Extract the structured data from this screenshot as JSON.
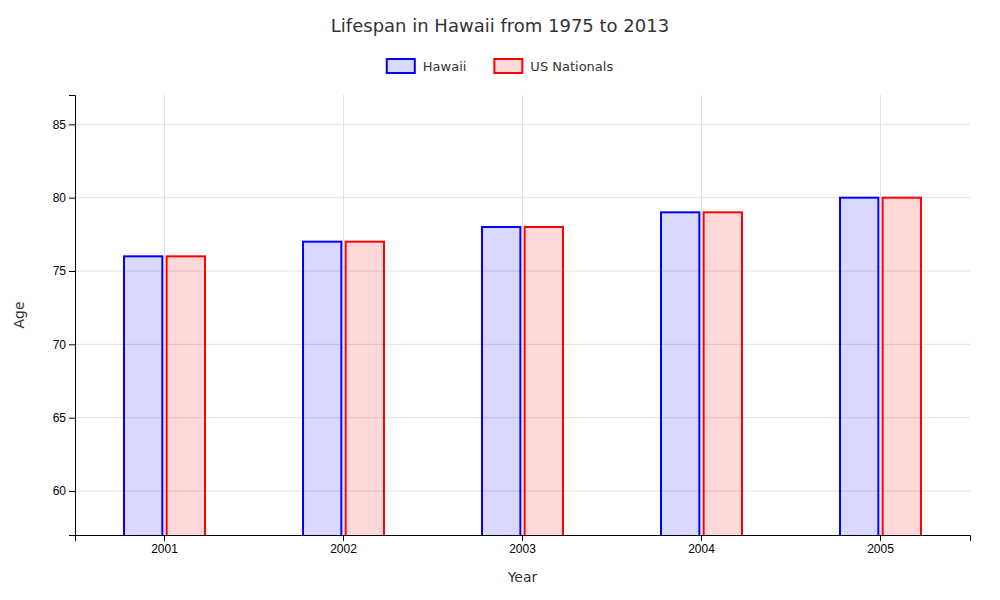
{
  "chart_data": {
    "type": "bar",
    "title": "Lifespan in Hawaii from 1975 to 2013",
    "xlabel": "Year",
    "ylabel": "Age",
    "categories": [
      "2001",
      "2002",
      "2003",
      "2004",
      "2005"
    ],
    "series": [
      {
        "name": "Hawaii",
        "color": "#0000ff",
        "values": [
          76,
          77,
          78,
          79,
          80
        ]
      },
      {
        "name": "US Nationals",
        "color": "#ff0000",
        "values": [
          76,
          77,
          78,
          79,
          80
        ]
      }
    ],
    "ylim": [
      57,
      87
    ],
    "yticks": [
      60,
      65,
      70,
      75,
      80,
      85
    ],
    "grid": true,
    "legend": "top"
  }
}
